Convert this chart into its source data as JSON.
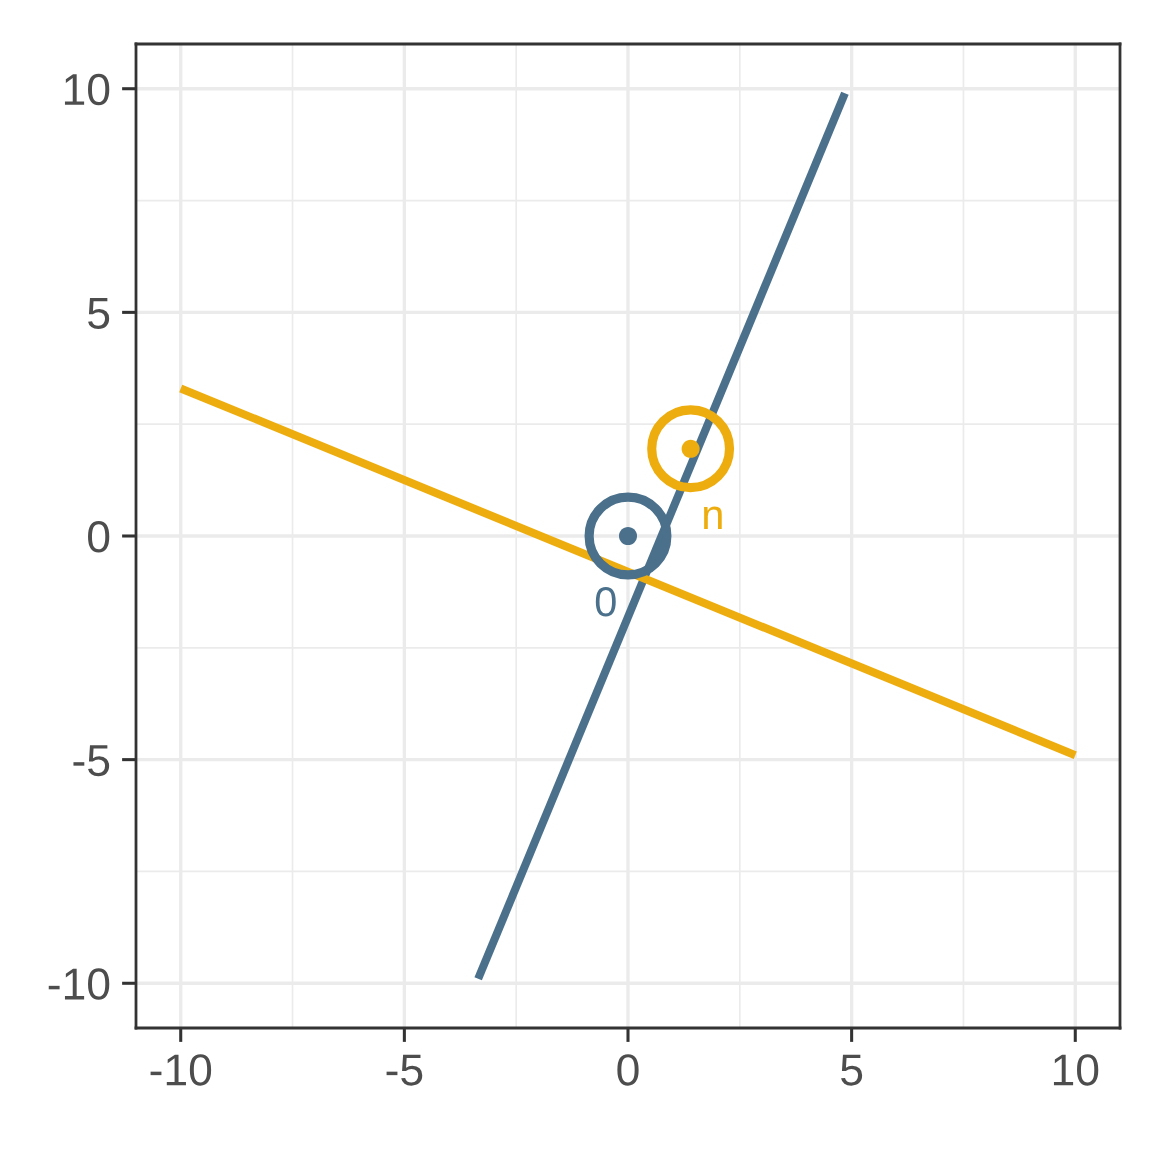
{
  "chart_data": {
    "type": "line",
    "xlim": [
      -11,
      11
    ],
    "ylim": [
      -11,
      11
    ],
    "xticks": [
      -10,
      -5,
      0,
      5,
      10
    ],
    "yticks": [
      -10,
      -5,
      0,
      5,
      10
    ],
    "grid": true,
    "series": [
      {
        "color": "#4a708b",
        "x": [
          -3.35,
          4.85
        ],
        "values": [
          -9.9,
          9.9
        ]
      },
      {
        "color": "#eead0e",
        "x": [
          -10,
          10
        ],
        "values": [
          3.3,
          -4.9
        ]
      },
      {
        "type": "scatter",
        "color": "#4a708b",
        "x": [
          0
        ],
        "values": [
          0
        ],
        "marker": "circle"
      },
      {
        "type": "scatter",
        "color": "#eead0e",
        "x": [
          1.4
        ],
        "values": [
          1.95
        ],
        "marker": "circle"
      }
    ],
    "annotations": [
      {
        "text": "0",
        "x": 0,
        "y": 0
      },
      {
        "text": "n",
        "x": 1.4,
        "y": 1.95
      }
    ]
  }
}
